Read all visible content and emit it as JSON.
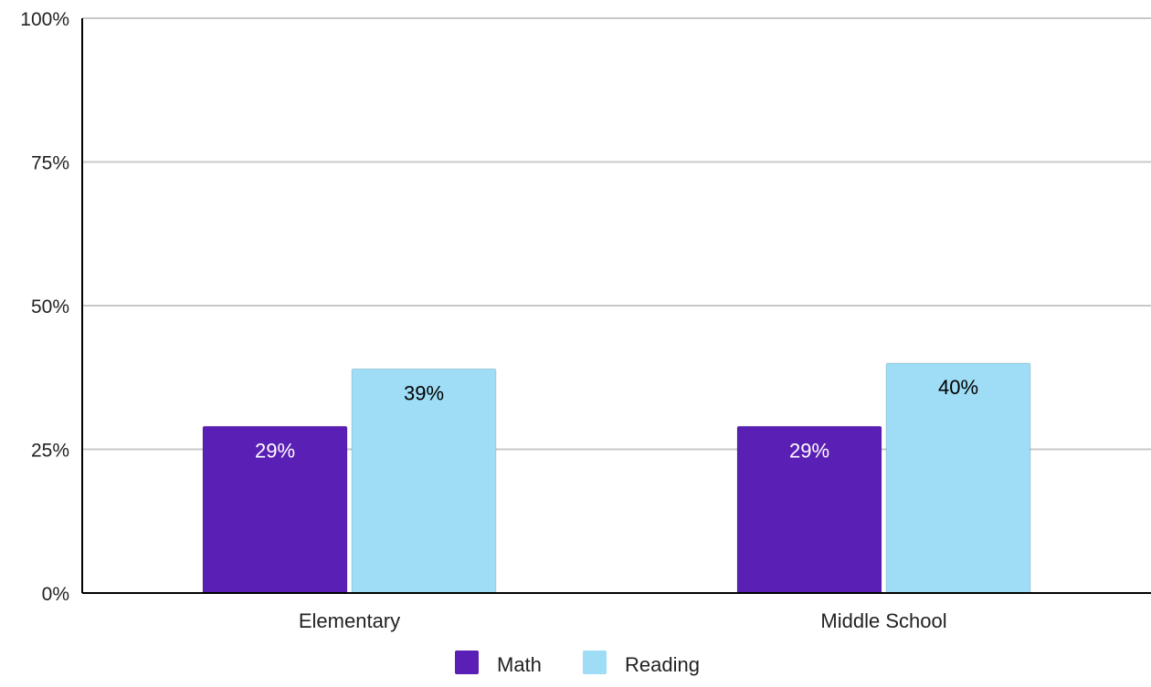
{
  "chart_data": {
    "type": "bar",
    "categories": [
      "Elementary",
      "Middle School"
    ],
    "series": [
      {
        "name": "Math",
        "values": [
          29,
          29
        ],
        "labels": [
          "29%",
          "29%"
        ],
        "color": "#5a1fb4",
        "label_color": "#ffffff"
      },
      {
        "name": "Reading",
        "values": [
          39,
          40
        ],
        "labels": [
          "39%",
          "40%"
        ],
        "color": "#9fdcf5",
        "label_color": "#000000"
      }
    ],
    "y_ticks": [
      {
        "value": 0,
        "label": "0%"
      },
      {
        "value": 25,
        "label": "25%"
      },
      {
        "value": 50,
        "label": "50%"
      },
      {
        "value": 75,
        "label": "75%"
      },
      {
        "value": 100,
        "label": "100%"
      }
    ],
    "ylim": [
      0,
      100
    ],
    "grid": true,
    "legend_position": "bottom-center",
    "axis_color": "#000000",
    "grid_color": "#c8c8c8"
  }
}
